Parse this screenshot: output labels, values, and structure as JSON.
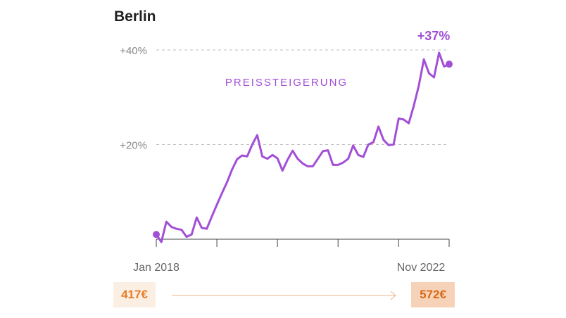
{
  "chart_data": {
    "type": "line",
    "title": "Berlin",
    "annotation": "PREISSTEIGERUNG",
    "end_label": "+37%",
    "x_tick_labels": [
      "Jan 2018",
      "Nov 2022"
    ],
    "y_tick_labels": [
      "+40%",
      "+20%"
    ],
    "y_gridlines": [
      20,
      40
    ],
    "ylim": [
      0,
      40
    ],
    "grid": true,
    "legend": "none",
    "series": [
      {
        "color": "#a24fd6",
        "x": [
          "2018-01",
          "2018-02",
          "2018-03",
          "2018-04",
          "2018-05",
          "2018-06",
          "2018-07",
          "2018-08",
          "2018-09",
          "2018-10",
          "2018-11",
          "2018-12",
          "2019-01",
          "2019-02",
          "2019-03",
          "2019-04",
          "2019-05",
          "2019-06",
          "2019-07",
          "2019-08",
          "2019-09",
          "2019-10",
          "2019-11",
          "2019-12",
          "2020-01",
          "2020-02",
          "2020-03",
          "2020-04",
          "2020-05",
          "2020-06",
          "2020-07",
          "2020-08",
          "2020-09",
          "2020-10",
          "2020-11",
          "2020-12",
          "2021-01",
          "2021-02",
          "2021-03",
          "2021-04",
          "2021-05",
          "2021-06",
          "2021-07",
          "2021-08",
          "2021-09",
          "2021-10",
          "2021-11",
          "2021-12",
          "2022-01",
          "2022-02",
          "2022-03",
          "2022-04",
          "2022-05",
          "2022-06",
          "2022-07",
          "2022-08",
          "2022-09",
          "2022-10",
          "2022-11"
        ],
        "values": [
          1.0,
          -0.6,
          3.7,
          2.6,
          2.2,
          2.0,
          0.5,
          1.0,
          4.6,
          2.4,
          2.2,
          4.8,
          7.3,
          9.7,
          12.0,
          14.7,
          16.9,
          17.7,
          17.5,
          20.0,
          22.0,
          17.5,
          17.0,
          17.8,
          17.1,
          14.5,
          16.8,
          18.7,
          17.0,
          16.0,
          15.4,
          15.4,
          17.0,
          18.6,
          18.8,
          15.7,
          15.7,
          16.2,
          17.0,
          19.8,
          17.8,
          17.4,
          20.0,
          20.5,
          23.8,
          21.0,
          19.9,
          20.0,
          25.5,
          25.3,
          24.5,
          28.2,
          32.5,
          38.0,
          35.1,
          34.2,
          39.4,
          36.5,
          37.0
        ]
      }
    ],
    "price_start": "417€",
    "price_end": "572€",
    "colors": {
      "line": "#a24fd6",
      "price_accent": "#e87d2a"
    }
  }
}
